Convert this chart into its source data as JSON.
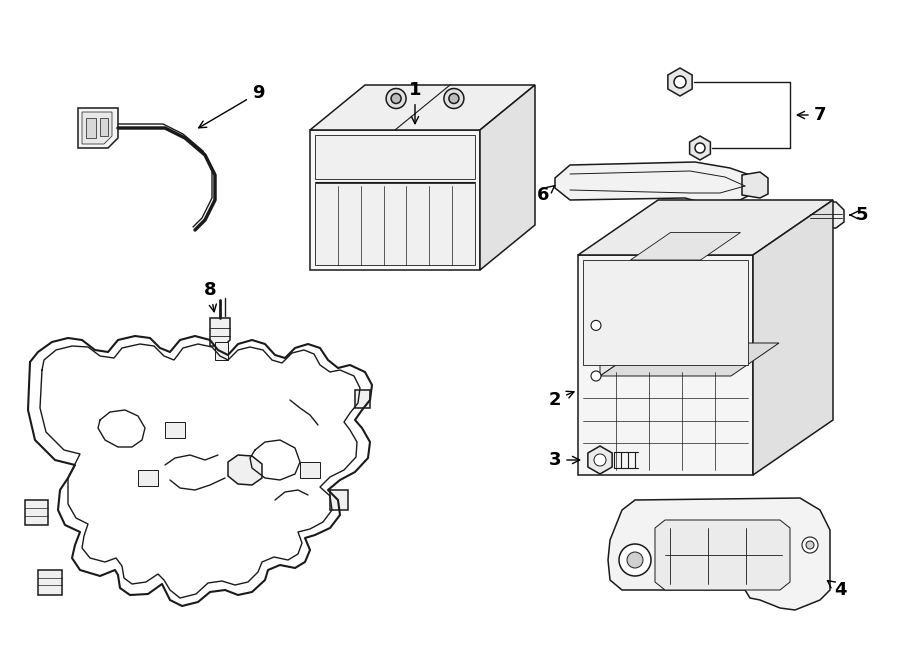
{
  "bg_color": "#ffffff",
  "line_color": "#1a1a1a",
  "fill_color": "#ffffff",
  "label_fontsize": 14,
  "arrow_lw": 1.0,
  "part_lw": 1.1
}
